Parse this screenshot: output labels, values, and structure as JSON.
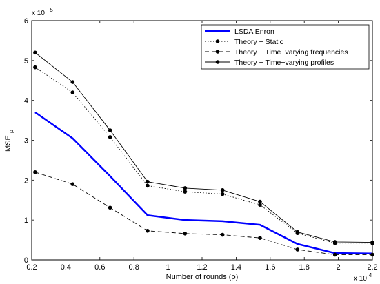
{
  "chart_data": {
    "type": "line",
    "xlabel": "Number of rounds (ρ)",
    "ylabel_main": "MSE",
    "ylabel_sub": "ρ",
    "x_multiplier": {
      "base": "x 10",
      "exp": "4"
    },
    "y_multiplier": {
      "base": "x 10",
      "exp": "−5"
    },
    "xlim": [
      0.2,
      2.2
    ],
    "ylim": [
      0,
      6
    ],
    "x_ticks": [
      "0.2",
      "0.4",
      "0.6",
      "0.8",
      "1",
      "1.2",
      "1.4",
      "1.6",
      "1.8",
      "2",
      "2.2"
    ],
    "y_ticks": [
      "0",
      "1",
      "2",
      "3",
      "4",
      "5",
      "6"
    ],
    "x": [
      0.22,
      0.44,
      0.66,
      0.88,
      1.1,
      1.32,
      1.54,
      1.76,
      1.98,
      2.2
    ],
    "series": [
      {
        "name": "LSDA Enron",
        "style": "solid-blue",
        "color": "#0000ff",
        "values": [
          3.7,
          3.05,
          2.1,
          1.12,
          1.0,
          0.97,
          0.88,
          0.4,
          0.17,
          0.16
        ]
      },
      {
        "name": "Theory − Static",
        "style": "dotted-dots",
        "color": "#000000",
        "values": [
          4.83,
          4.2,
          3.08,
          1.86,
          1.71,
          1.65,
          1.38,
          0.67,
          0.42,
          0.42
        ]
      },
      {
        "name": "Theory − Time−varying frequencies",
        "style": "dashed-dots",
        "color": "#000000",
        "values": [
          2.2,
          1.9,
          1.31,
          0.73,
          0.66,
          0.63,
          0.55,
          0.26,
          0.13,
          0.13
        ]
      },
      {
        "name": "Theory − Time−varying profiles",
        "style": "solid-dots",
        "color": "#000000",
        "values": [
          5.2,
          4.46,
          3.25,
          1.96,
          1.8,
          1.75,
          1.46,
          0.7,
          0.45,
          0.44
        ]
      }
    ],
    "legend_position": "top-right",
    "grid": false
  }
}
